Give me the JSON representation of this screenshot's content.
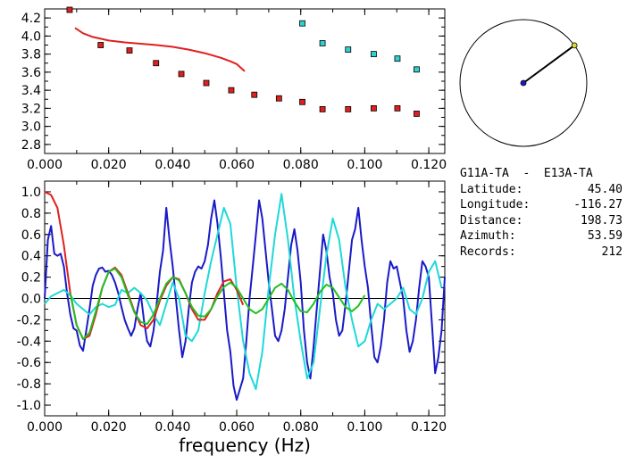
{
  "info": {
    "pair": "G11A-TA  -  E13A-TA",
    "rows": [
      {
        "label": "Latitude:",
        "value": "45.40"
      },
      {
        "label": "Longitude:",
        "value": "-116.27"
      },
      {
        "label": "Distance:",
        "value": "198.73"
      },
      {
        "label": "Azimuth:",
        "value": "53.59"
      },
      {
        "label": "Records:",
        "value": "212"
      }
    ]
  },
  "chart_data": [
    {
      "type": "scatter",
      "xlim": [
        0.0,
        0.125
      ],
      "ylim": [
        2.7,
        4.3
      ],
      "xticks": [
        "0.000",
        "0.020",
        "0.040",
        "0.060",
        "0.080",
        "0.100",
        "0.120"
      ],
      "yticks": [
        "2.8",
        "3.0",
        "3.2",
        "3.4",
        "3.6",
        "3.8",
        "4.0",
        "4.2"
      ],
      "series": [
        {
          "color": "#e02020",
          "marker": "square",
          "x": [
            0.0078,
            0.0175,
            0.0265,
            0.0348,
            0.0427,
            0.0505,
            0.0583,
            0.0655,
            0.0732,
            0.0805,
            0.0868,
            0.0948,
            0.1028,
            0.1102,
            0.1162
          ],
          "y": [
            4.29,
            3.9,
            3.84,
            3.7,
            3.58,
            3.48,
            3.4,
            3.35,
            3.31,
            3.27,
            3.19,
            3.19,
            3.2,
            3.2,
            3.14
          ]
        },
        {
          "color": "#30d0d0",
          "marker": "square",
          "x": [
            0.0805,
            0.0868,
            0.0948,
            0.1028,
            0.1102,
            0.1162
          ],
          "y": [
            4.14,
            3.92,
            3.85,
            3.8,
            3.75,
            3.63
          ]
        },
        {
          "color": "#e02020",
          "marker": "line",
          "x": [
            0.0095,
            0.012,
            0.015,
            0.02,
            0.025,
            0.03,
            0.035,
            0.04,
            0.045,
            0.05,
            0.055,
            0.058,
            0.06,
            0.0625
          ],
          "y": [
            4.09,
            4.03,
            3.99,
            3.95,
            3.93,
            3.915,
            3.9,
            3.88,
            3.85,
            3.81,
            3.76,
            3.72,
            3.69,
            3.61
          ]
        }
      ]
    },
    {
      "type": "line",
      "xlabel": "frequency (Hz)",
      "xlim": [
        0.0,
        0.125
      ],
      "ylim": [
        -1.1,
        1.1
      ],
      "xticks": [
        "0.000",
        "0.020",
        "0.040",
        "0.060",
        "0.080",
        "0.100",
        "0.120"
      ],
      "yticks": [
        "1.0",
        "0.8",
        "0.6",
        "0.4",
        "0.2",
        "0.0",
        "-0.2",
        "-0.4",
        "-0.6",
        "-0.8",
        "-1.0"
      ],
      "series": [
        {
          "color": "#1a1ac8",
          "x": [
            0,
            0.001,
            0.002,
            0.003,
            0.004,
            0.005,
            0.006,
            0.007,
            0.008,
            0.009,
            0.01,
            0.011,
            0.012,
            0.013,
            0.014,
            0.015,
            0.016,
            0.017,
            0.018,
            0.019,
            0.02,
            0.021,
            0.022,
            0.023,
            0.024,
            0.025,
            0.026,
            0.027,
            0.028,
            0.029,
            0.03,
            0.031,
            0.032,
            0.033,
            0.034,
            0.035,
            0.036,
            0.037,
            0.038,
            0.039,
            0.04,
            0.041,
            0.042,
            0.043,
            0.044,
            0.045,
            0.046,
            0.047,
            0.048,
            0.049,
            0.05,
            0.051,
            0.052,
            0.053,
            0.054,
            0.055,
            0.056,
            0.057,
            0.058,
            0.059,
            0.06,
            0.061,
            0.062,
            0.063,
            0.064,
            0.065,
            0.066,
            0.067,
            0.068,
            0.069,
            0.07,
            0.071,
            0.072,
            0.073,
            0.074,
            0.075,
            0.076,
            0.077,
            0.078,
            0.079,
            0.08,
            0.081,
            0.082,
            0.083,
            0.084,
            0.085,
            0.086,
            0.087,
            0.088,
            0.089,
            0.09,
            0.091,
            0.092,
            0.093,
            0.094,
            0.095,
            0.096,
            0.097,
            0.098,
            0.099,
            0.1,
            0.101,
            0.102,
            0.103,
            0.104,
            0.105,
            0.106,
            0.107,
            0.108,
            0.109,
            0.11,
            0.111,
            0.112,
            0.113,
            0.114,
            0.115,
            0.116,
            0.117,
            0.118,
            0.119,
            0.12,
            0.121,
            0.122,
            0.123,
            0.124,
            0.125
          ],
          "y": [
            0.0,
            0.55,
            0.68,
            0.42,
            0.4,
            0.42,
            0.3,
            0.05,
            -0.15,
            -0.28,
            -0.3,
            -0.44,
            -0.49,
            -0.3,
            -0.1,
            0.12,
            0.22,
            0.28,
            0.29,
            0.25,
            0.26,
            0.22,
            0.15,
            0.05,
            -0.08,
            -0.2,
            -0.28,
            -0.35,
            -0.28,
            -0.1,
            0.05,
            -0.2,
            -0.4,
            -0.45,
            -0.3,
            -0.05,
            0.25,
            0.45,
            0.85,
            0.55,
            0.3,
            0.0,
            -0.3,
            -0.55,
            -0.4,
            -0.1,
            0.15,
            0.25,
            0.3,
            0.28,
            0.35,
            0.5,
            0.75,
            0.92,
            0.7,
            0.4,
            0.05,
            -0.3,
            -0.5,
            -0.82,
            -0.95,
            -0.85,
            -0.75,
            -0.4,
            0.0,
            0.3,
            0.6,
            0.92,
            0.75,
            0.45,
            0.15,
            -0.1,
            -0.35,
            -0.4,
            -0.3,
            -0.1,
            0.2,
            0.5,
            0.65,
            0.45,
            0.15,
            -0.3,
            -0.6,
            -0.75,
            -0.45,
            -0.1,
            0.25,
            0.6,
            0.45,
            0.2,
            0.05,
            -0.2,
            -0.35,
            -0.3,
            -0.05,
            0.25,
            0.55,
            0.65,
            0.85,
            0.55,
            0.3,
            0.1,
            -0.25,
            -0.55,
            -0.6,
            -0.45,
            -0.2,
            0.15,
            0.35,
            0.28,
            0.3,
            0.15,
            0.0,
            -0.3,
            -0.5,
            -0.4,
            -0.2,
            0.1,
            0.35,
            0.3,
            0.2,
            -0.25,
            -0.7,
            -0.55,
            -0.3,
            0.2
          ]
        },
        {
          "color": "#20d8d8",
          "x": [
            0,
            0.002,
            0.004,
            0.006,
            0.008,
            0.01,
            0.012,
            0.014,
            0.016,
            0.018,
            0.02,
            0.022,
            0.024,
            0.026,
            0.028,
            0.03,
            0.032,
            0.034,
            0.036,
            0.038,
            0.04,
            0.042,
            0.044,
            0.046,
            0.048,
            0.05,
            0.052,
            0.054,
            0.056,
            0.058,
            0.06,
            0.062,
            0.064,
            0.066,
            0.068,
            0.07,
            0.072,
            0.074,
            0.076,
            0.078,
            0.08,
            0.082,
            0.084,
            0.086,
            0.088,
            0.09,
            0.092,
            0.094,
            0.096,
            0.098,
            0.1,
            0.102,
            0.104,
            0.106,
            0.108,
            0.11,
            0.112,
            0.114,
            0.116,
            0.118,
            0.12,
            0.122,
            0.124
          ],
          "y": [
            -0.05,
            0.02,
            0.05,
            0.08,
            0.03,
            -0.05,
            -0.1,
            -0.15,
            -0.08,
            -0.05,
            -0.08,
            -0.06,
            0.08,
            0.05,
            0.1,
            0.05,
            -0.02,
            -0.15,
            -0.25,
            -0.05,
            0.15,
            0.0,
            -0.35,
            -0.4,
            -0.3,
            0.05,
            0.35,
            0.6,
            0.85,
            0.7,
            0.1,
            -0.4,
            -0.7,
            -0.85,
            -0.5,
            0.1,
            0.6,
            0.98,
            0.55,
            0.0,
            -0.4,
            -0.75,
            -0.6,
            -0.1,
            0.4,
            0.75,
            0.55,
            0.1,
            -0.2,
            -0.45,
            -0.4,
            -0.2,
            -0.05,
            -0.1,
            -0.05,
            0.0,
            0.1,
            -0.1,
            -0.15,
            0.0,
            0.25,
            0.35,
            0.1
          ]
        },
        {
          "color": "#e02020",
          "x": [
            0,
            0.002,
            0.004,
            0.006,
            0.008,
            0.01,
            0.012,
            0.014,
            0.016,
            0.018,
            0.02,
            0.022,
            0.024,
            0.026,
            0.028,
            0.03,
            0.032,
            0.034,
            0.036,
            0.038,
            0.04,
            0.042,
            0.044,
            0.046,
            0.048,
            0.05,
            0.052,
            0.054,
            0.056,
            0.058,
            0.06,
            0.062
          ],
          "y": [
            1.0,
            0.97,
            0.85,
            0.5,
            0.05,
            -0.25,
            -0.38,
            -0.35,
            -0.15,
            0.1,
            0.25,
            0.29,
            0.22,
            0.05,
            -0.12,
            -0.25,
            -0.28,
            -0.2,
            -0.02,
            0.12,
            0.2,
            0.18,
            0.05,
            -0.1,
            -0.2,
            -0.2,
            -0.1,
            0.05,
            0.16,
            0.18,
            0.08,
            -0.06
          ]
        },
        {
          "color": "#20c020",
          "x": [
            0.008,
            0.01,
            0.012,
            0.014,
            0.016,
            0.018,
            0.02,
            0.022,
            0.024,
            0.026,
            0.028,
            0.03,
            0.032,
            0.034,
            0.036,
            0.038,
            0.04,
            0.042,
            0.044,
            0.046,
            0.048,
            0.05,
            0.052,
            0.054,
            0.056,
            0.058,
            0.06,
            0.062,
            0.064,
            0.066,
            0.068,
            0.07,
            0.072,
            0.074,
            0.076,
            0.078,
            0.08,
            0.082,
            0.084,
            0.086,
            0.088,
            0.09,
            0.092,
            0.094,
            0.096,
            0.098,
            0.1
          ],
          "y": [
            0.05,
            -0.25,
            -0.38,
            -0.32,
            -0.12,
            0.1,
            0.25,
            0.28,
            0.2,
            0.03,
            -0.13,
            -0.22,
            -0.24,
            -0.15,
            0.0,
            0.14,
            0.2,
            0.17,
            0.05,
            -0.08,
            -0.16,
            -0.17,
            -0.1,
            0.02,
            0.11,
            0.15,
            0.1,
            0.0,
            -0.1,
            -0.14,
            -0.1,
            0.0,
            0.1,
            0.14,
            0.08,
            -0.03,
            -0.12,
            -0.13,
            -0.05,
            0.06,
            0.13,
            0.1,
            0.01,
            -0.08,
            -0.12,
            -0.07,
            0.03
          ]
        }
      ]
    }
  ],
  "azimuth_plot": {
    "azimuth_deg": 53.59,
    "ray_color": "#000000",
    "center_color": "#1a1ac8",
    "end_color": "#d8d830"
  }
}
